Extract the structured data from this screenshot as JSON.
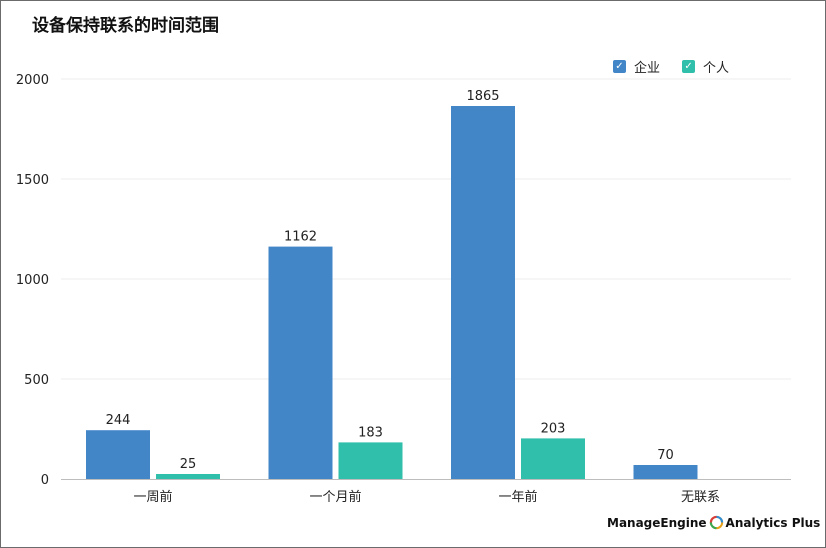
{
  "title": "设备保持联系的时间范围",
  "legend": [
    {
      "label": "企业",
      "color": "#4286c8",
      "icon": "checkbox-checked-icon"
    },
    {
      "label": "个人",
      "color": "#2fbfaa",
      "icon": "checkbox-checked-icon"
    }
  ],
  "chart_data": {
    "type": "bar",
    "title": "设备保持联系的时间范围",
    "categories": [
      "一周前",
      "一个月前",
      "一年前",
      "无联系"
    ],
    "series": [
      {
        "name": "企业",
        "color": "#4286c8",
        "values": [
          244,
          1162,
          1865,
          70
        ]
      },
      {
        "name": "个人",
        "color": "#2fbfaa",
        "values": [
          25,
          183,
          203,
          null
        ]
      }
    ],
    "ylim": [
      0,
      2000
    ],
    "yticks": [
      0,
      500,
      1000,
      1500,
      2000
    ],
    "xlabel": "",
    "ylabel": "",
    "grid": true,
    "legend_position": "top-right"
  },
  "watermark": {
    "brand": "ManageEngine",
    "product": "Analytics Plus"
  }
}
